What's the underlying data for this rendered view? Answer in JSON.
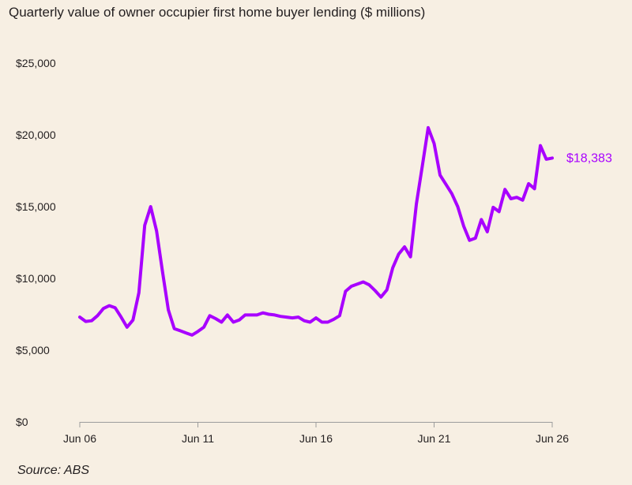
{
  "chart_data": {
    "type": "line",
    "title": "Quarterly value of owner occupier first home buyer lending ($ millions)",
    "xlabel": "",
    "ylabel": "",
    "source": "Source: ABS",
    "line_color": "#a800ff",
    "ylim": [
      0,
      25000
    ],
    "y_ticks": [
      0,
      5000,
      10000,
      15000,
      20000,
      25000
    ],
    "y_tick_labels": [
      "$0",
      "$5,000",
      "$10,000",
      "$15,000",
      "$20,000",
      "$25,000"
    ],
    "x_ticks": [
      "2006-06",
      "2011-06",
      "2016-06",
      "2021-06",
      "2026-06"
    ],
    "x_tick_labels": [
      "Jun 06",
      "Jun 11",
      "Jun 16",
      "Jun 21",
      "Jun 26"
    ],
    "xlim": [
      "2006-06",
      "2026-06"
    ],
    "grid": false,
    "legend": "none",
    "end_label": "$18,383",
    "series": [
      {
        "x": [
          "2006-06",
          "2006-09",
          "2006-12",
          "2007-03",
          "2007-06",
          "2007-09",
          "2007-12",
          "2008-03",
          "2008-06",
          "2008-09",
          "2008-12",
          "2009-03",
          "2009-06",
          "2009-09",
          "2009-12",
          "2010-03",
          "2010-06",
          "2010-09",
          "2010-12",
          "2011-03",
          "2011-06",
          "2011-09",
          "2011-12",
          "2012-03",
          "2012-06",
          "2012-09",
          "2012-12",
          "2013-03",
          "2013-06",
          "2013-09",
          "2013-12",
          "2014-03",
          "2014-06",
          "2014-09",
          "2014-12",
          "2015-03",
          "2015-06",
          "2015-09",
          "2015-12",
          "2016-03",
          "2016-06",
          "2016-09",
          "2016-12",
          "2017-03",
          "2017-06",
          "2017-09",
          "2017-12",
          "2018-03",
          "2018-06",
          "2018-09",
          "2018-12",
          "2019-03",
          "2019-06",
          "2019-09",
          "2019-12",
          "2020-03",
          "2020-06",
          "2020-09",
          "2020-12",
          "2021-03",
          "2021-06",
          "2021-09",
          "2021-12",
          "2022-03",
          "2022-06",
          "2022-09",
          "2022-12",
          "2023-03",
          "2023-06",
          "2023-09",
          "2023-12",
          "2024-03",
          "2024-06",
          "2024-09",
          "2024-12",
          "2025-03",
          "2025-06",
          "2025-09",
          "2025-12",
          "2026-03",
          "2026-06"
        ],
        "values": [
          7300,
          7000,
          7050,
          7400,
          7900,
          8100,
          7950,
          7300,
          6600,
          7100,
          9000,
          13700,
          15000,
          13300,
          10500,
          7800,
          6500,
          6350,
          6200,
          6050,
          6300,
          6600,
          7400,
          7200,
          6950,
          7450,
          6950,
          7100,
          7450,
          7450,
          7450,
          7600,
          7500,
          7450,
          7350,
          7300,
          7250,
          7300,
          7050,
          6950,
          7250,
          6950,
          6950,
          7150,
          7400,
          9100,
          9450,
          9600,
          9750,
          9550,
          9150,
          8700,
          9200,
          10750,
          11700,
          12200,
          11500,
          15200,
          17800,
          20500,
          19400,
          17200,
          16550,
          15900,
          15000,
          13650,
          12650,
          12800,
          14100,
          13250,
          14950,
          14650,
          16200,
          15550,
          15650,
          15450,
          16600,
          16250,
          19250,
          18300,
          18383
        ]
      }
    ]
  }
}
